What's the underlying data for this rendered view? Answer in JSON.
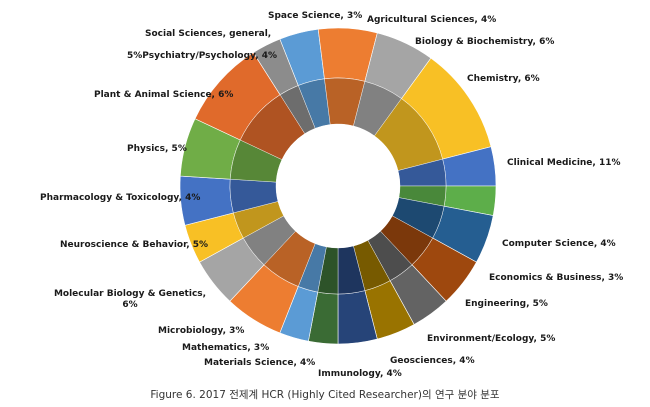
{
  "chart_data": {
    "type": "pie",
    "variant": "double-donut",
    "caption": "Figure 6. 2017 전제계 HCR (Highly Cited Researcher)의 연구 분야 분포",
    "series": [
      {
        "label": "Agricultural Sciences, 4%",
        "value": 4,
        "color": "#5B9BD5"
      },
      {
        "label": "Biology & Biochemistry, 6%",
        "value": 6,
        "color": "#ED7D31"
      },
      {
        "label": "Chemistry, 6%",
        "value": 6,
        "color": "#A5A5A5"
      },
      {
        "label": "Clinical Medicine, 11%",
        "value": 11,
        "color": "#F8C025"
      },
      {
        "label": "Computer Science, 4%",
        "value": 4,
        "color": "#4472C4"
      },
      {
        "label": "Economics & Business, 3%",
        "value": 3,
        "color": "#5DAE4A"
      },
      {
        "label": "Engineering, 5%",
        "value": 5,
        "color": "#255E91"
      },
      {
        "label": "Environment/Ecology, 5%",
        "value": 5,
        "color": "#9E480E"
      },
      {
        "label": "Geosciences, 4%",
        "value": 4,
        "color": "#636363"
      },
      {
        "label": "Immunology, 4%",
        "value": 4,
        "color": "#997300"
      },
      {
        "label": "Materials Science, 4%",
        "value": 4,
        "color": "#264478"
      },
      {
        "label": "Mathematics, 3%",
        "value": 3,
        "color": "#3A6B34"
      },
      {
        "label": "Microbiology, 3%",
        "value": 3,
        "color": "#5B9BD5"
      },
      {
        "label": [
          "Molecular Biology & Genetics,",
          "6%"
        ],
        "value": 6,
        "color": "#ED7D31"
      },
      {
        "label": "Neuroscience & Behavior, 5%",
        "value": 5,
        "color": "#A5A5A5"
      },
      {
        "label": "Pharmacology & Toxicology, 4%",
        "value": 4,
        "color": "#F8C025"
      },
      {
        "label": "Physics, 5%",
        "value": 5,
        "color": "#4472C4"
      },
      {
        "label": "Plant & Animal Science, 6%",
        "value": 6,
        "color": "#70AD47"
      },
      {
        "label": [
          "Social Sciences, general,",
          "5%Psychiatry/Psychology, 4%"
        ],
        "value": 9,
        "color": "#E06A2B"
      },
      {
        "label": "Space Science, 3%",
        "value": 3,
        "color": "#8C8C8C"
      }
    ]
  }
}
